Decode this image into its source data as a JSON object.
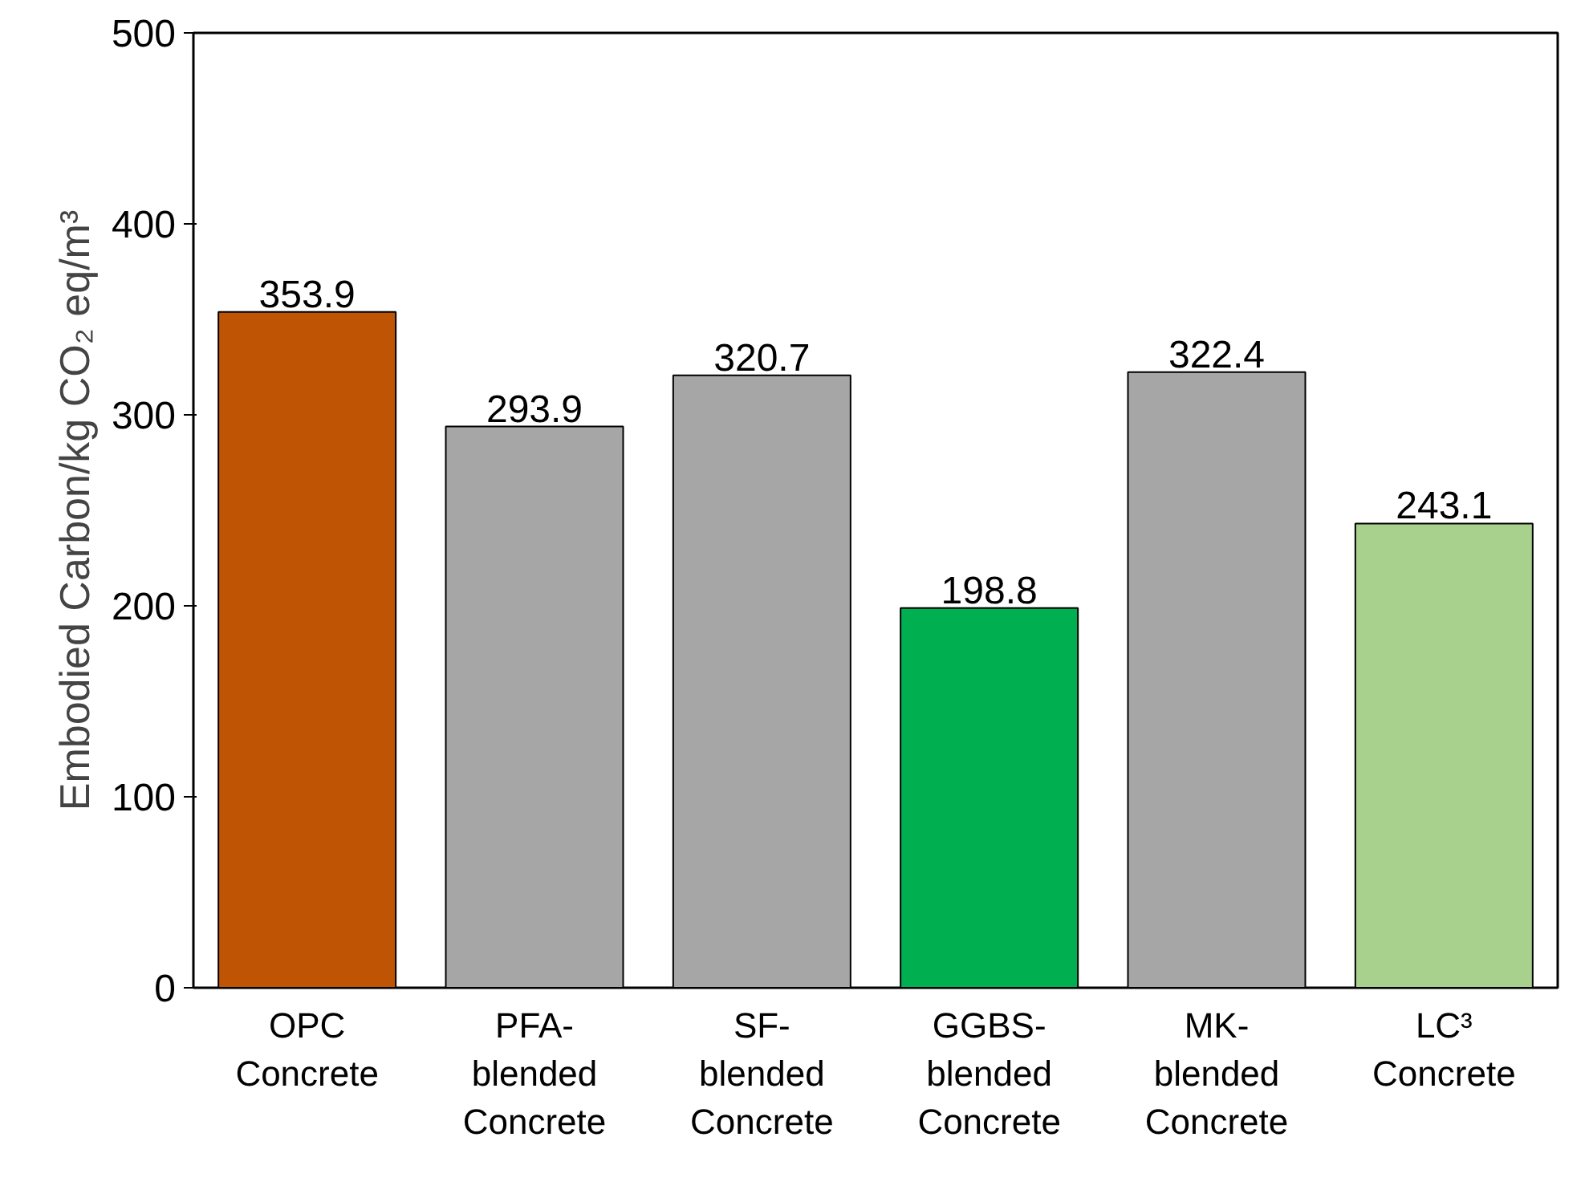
{
  "chart_data": {
    "type": "bar",
    "ylabel": "Embodied Carbon/kg CO₂ eq/m³",
    "categories": [
      "OPC\nConcrete",
      "PFA-\nblended\nConcrete",
      "SF-\nblended\nConcrete",
      "GGBS-\nblended\nConcrete",
      "MK-\nblended\nConcrete",
      "LC³\nConcrete"
    ],
    "values": [
      353.9,
      293.9,
      320.7,
      198.8,
      322.4,
      243.1
    ],
    "colors": [
      "#bf5504",
      "#a6a6a6",
      "#a6a6a6",
      "#00b050",
      "#a6a6a6",
      "#a9d18e"
    ],
    "ylim": [
      0,
      500
    ],
    "yticks": [
      0,
      100,
      200,
      300,
      400,
      500
    ],
    "grid": false,
    "data_labels": true
  }
}
